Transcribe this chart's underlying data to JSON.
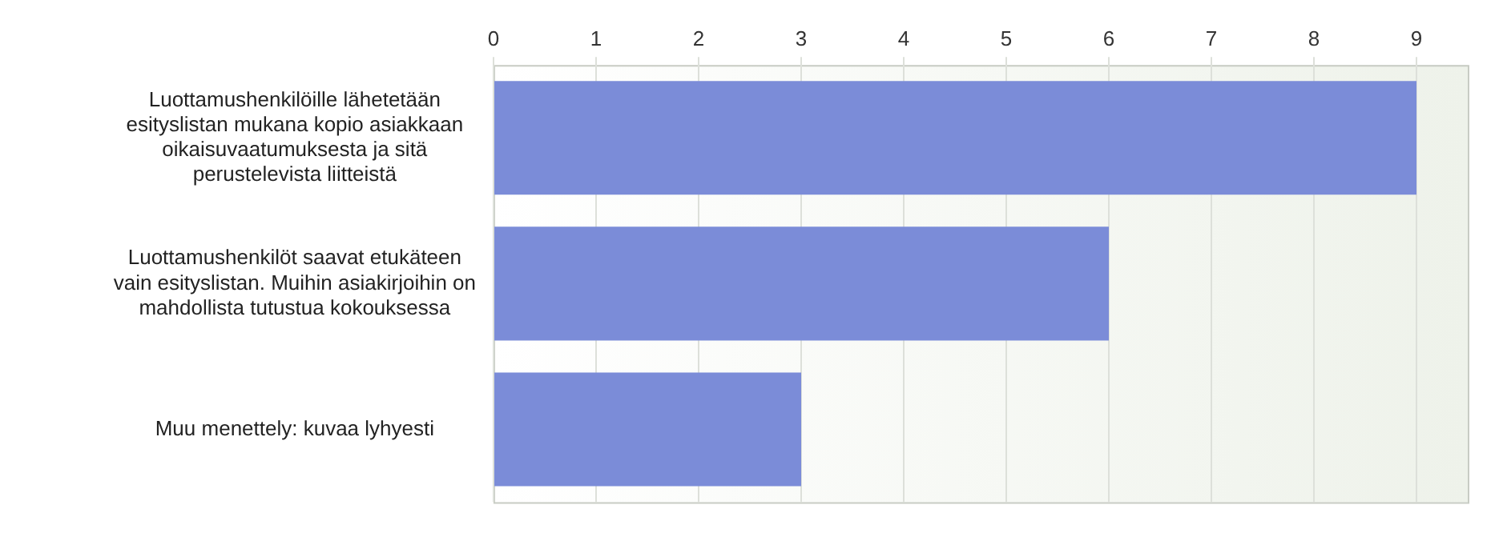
{
  "chart_data": {
    "type": "bar",
    "orientation": "horizontal",
    "categories": [
      "Luottamushenkilöille lähetetään esityslistan mukana kopio asiakkaan oikaisuvaatumuksesta ja sitä perustelevista liitteistä",
      "Luottamushenkilöt saavat etukäteen vain esityslistan. Muihin asiakirjoihin on mahdollista tutustua kokouksessa",
      "Muu menettely: kuvaa lyhyesti"
    ],
    "values": [
      9,
      6,
      3
    ],
    "color": "#7b8cd8",
    "xlim": [
      0,
      9.5
    ],
    "xticks": [
      0,
      1,
      2,
      3,
      4,
      5,
      6,
      7,
      8,
      9
    ],
    "grid": "x",
    "legend": false
  }
}
